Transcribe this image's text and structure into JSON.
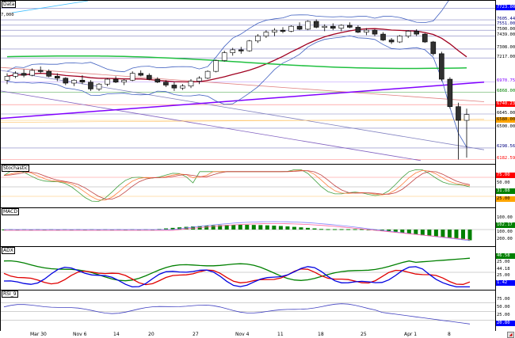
{
  "panels": {
    "price": {
      "title": "Data"
    },
    "stoch": {
      "title": "Stochastic"
    },
    "macd": {
      "title": "MACD"
    },
    "adx": {
      "title": "ADX"
    },
    "rsi": {
      "title": "RSI_9"
    }
  },
  "corner_value": "7,000",
  "price_tags": [
    {
      "label": "7723.00",
      "bg": "#0000ff",
      "fg": "#ffffff"
    },
    {
      "label": "7605.44",
      "bg": "#ffffff",
      "fg": "#000080"
    },
    {
      "label": "7551.00",
      "bg": "#ffffff",
      "fg": "#000080"
    },
    {
      "label": "7500.00",
      "bg": "#ffffff",
      "fg": "#000000"
    },
    {
      "label": "7439.00",
      "bg": "#ffffff",
      "fg": "#000000"
    },
    {
      "label": "7308.00",
      "bg": "#ffffff",
      "fg": "#000000"
    },
    {
      "label": "7217.00",
      "bg": "#ffffff",
      "fg": "#000000"
    },
    {
      "label": "6970.75",
      "bg": "#ffffff",
      "fg": "#8000ff"
    },
    {
      "label": "6868.00",
      "bg": "#ffffff",
      "fg": "#008000"
    },
    {
      "label": "6740.23",
      "bg": "#ff0000",
      "fg": "#ffffff"
    },
    {
      "label": "6645.00",
      "bg": "#ffffff",
      "fg": "#000000"
    },
    {
      "label": "6580.00",
      "bg": "#ffa500",
      "fg": "#000000"
    },
    {
      "label": "6500.00",
      "bg": "#ffffff",
      "fg": "#000000"
    },
    {
      "label": "6298.56",
      "bg": "#ffffff",
      "fg": "#000080"
    },
    {
      "label": "6182.59",
      "bg": "#ffffff",
      "fg": "#ff0000"
    }
  ],
  "stoch_tags": [
    {
      "label": "75.00",
      "bg": "#ff0000",
      "fg": "#ffffff"
    },
    {
      "label": "50.00",
      "bg": "#ffffff",
      "fg": "#000000"
    },
    {
      "label": "31.88",
      "bg": "#008000",
      "fg": "#ffffff"
    },
    {
      "label": "25.00",
      "bg": "#ffa500",
      "fg": "#000000"
    }
  ],
  "macd_tags": [
    {
      "label": "100.00",
      "bg": "#ffffff",
      "fg": "#000000"
    },
    {
      "label": "102.17",
      "bg": "#008000",
      "fg": "#ffffff"
    },
    {
      "label": "100.00",
      "bg": "#ffffff",
      "fg": "#000000"
    },
    {
      "label": "200.00",
      "bg": "#ffffff",
      "fg": "#000000"
    }
  ],
  "adx_tags": [
    {
      "label": "46.58",
      "bg": "#008000",
      "fg": "#ffffff"
    },
    {
      "label": "25.00",
      "bg": "#ffffff",
      "fg": "#000000"
    },
    {
      "label": "44.18",
      "bg": "#ffffff",
      "fg": "#000000"
    },
    {
      "label": "25.00",
      "bg": "#ffffff",
      "fg": "#000000"
    },
    {
      "label": "1.42",
      "bg": "#0000ff",
      "fg": "#ffffff"
    }
  ],
  "rsi_tags": [
    {
      "label": "75.00",
      "bg": "#ffffff",
      "fg": "#000000"
    },
    {
      "label": "50.00",
      "bg": "#ffffff",
      "fg": "#000000"
    },
    {
      "label": "25.00",
      "bg": "#ffffff",
      "fg": "#000000"
    },
    {
      "label": "20.80",
      "bg": "#0000ff",
      "fg": "#ffffff"
    }
  ],
  "x_axis": [
    "Mar 30",
    "Nov 6",
    "14",
    "20",
    "27",
    "Nov 4",
    "11",
    "18",
    "25",
    "Apr 1",
    "8"
  ],
  "chart_data": {
    "type": "candlestick",
    "price_range": [
      6120,
      7800
    ],
    "candles": [
      [
        6990,
        7060,
        6950,
        7030
      ],
      [
        7030,
        7080,
        7010,
        7060
      ],
      [
        7060,
        7100,
        7020,
        7040
      ],
      [
        7040,
        7110,
        7030,
        7090
      ],
      [
        7090,
        7130,
        7060,
        7080
      ],
      [
        7080,
        7100,
        7020,
        7030
      ],
      [
        7030,
        7060,
        6980,
        7010
      ],
      [
        7010,
        7020,
        6940,
        6960
      ],
      [
        6960,
        7000,
        6930,
        6990
      ],
      [
        6990,
        7040,
        6950,
        6970
      ],
      [
        6970,
        6990,
        6880,
        6900
      ],
      [
        6900,
        6960,
        6880,
        6950
      ],
      [
        6950,
        7010,
        6930,
        7000
      ],
      [
        7000,
        7030,
        6960,
        6970
      ],
      [
        6970,
        7000,
        6940,
        6990
      ],
      [
        6990,
        7080,
        6980,
        7060
      ],
      [
        7060,
        7090,
        7030,
        7040
      ],
      [
        7040,
        7060,
        6990,
        7000
      ],
      [
        7000,
        7020,
        6960,
        6970
      ],
      [
        6970,
        6990,
        6920,
        6940
      ],
      [
        6940,
        6970,
        6880,
        6910
      ],
      [
        6910,
        6950,
        6890,
        6930
      ],
      [
        6930,
        7000,
        6910,
        6980
      ],
      [
        6980,
        7030,
        6950,
        7010
      ],
      [
        7010,
        7090,
        7000,
        7080
      ],
      [
        7080,
        7200,
        7070,
        7190
      ],
      [
        7190,
        7290,
        7180,
        7270
      ],
      [
        7270,
        7320,
        7240,
        7300
      ],
      [
        7300,
        7330,
        7260,
        7290
      ],
      [
        7290,
        7400,
        7280,
        7390
      ],
      [
        7390,
        7460,
        7370,
        7440
      ],
      [
        7440,
        7500,
        7420,
        7480
      ],
      [
        7480,
        7520,
        7440,
        7500
      ],
      [
        7500,
        7530,
        7470,
        7490
      ],
      [
        7490,
        7550,
        7480,
        7540
      ],
      [
        7540,
        7580,
        7500,
        7510
      ],
      [
        7510,
        7600,
        7500,
        7590
      ],
      [
        7590,
        7610,
        7520,
        7530
      ],
      [
        7530,
        7560,
        7490,
        7540
      ],
      [
        7540,
        7570,
        7500,
        7520
      ],
      [
        7520,
        7560,
        7490,
        7550
      ],
      [
        7550,
        7580,
        7520,
        7530
      ],
      [
        7530,
        7550,
        7470,
        7480
      ],
      [
        7480,
        7520,
        7450,
        7500
      ],
      [
        7500,
        7510,
        7440,
        7460
      ],
      [
        7460,
        7480,
        7390,
        7400
      ],
      [
        7400,
        7420,
        7360,
        7380
      ],
      [
        7380,
        7450,
        7370,
        7440
      ],
      [
        7440,
        7500,
        7420,
        7490
      ],
      [
        7490,
        7510,
        7440,
        7460
      ],
      [
        7460,
        7470,
        7370,
        7380
      ],
      [
        7380,
        7390,
        7240,
        7260
      ],
      [
        7260,
        7280,
        6980,
        7000
      ],
      [
        7000,
        7020,
        6700,
        6720
      ],
      [
        6720,
        6760,
        6180,
        6580
      ],
      [
        6580,
        6700,
        6200,
        6640
      ]
    ]
  }
}
